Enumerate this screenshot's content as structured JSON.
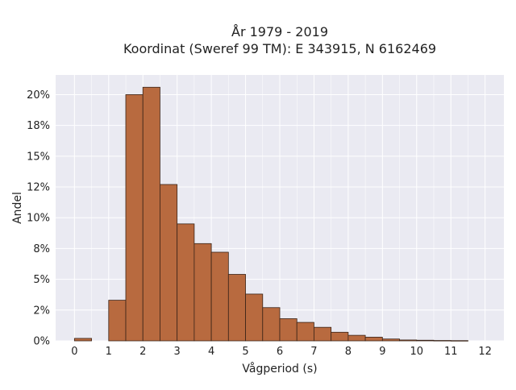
{
  "chart_data": {
    "type": "bar",
    "title_line1": "År 1979 - 2019",
    "title_line2": "Koordinat (Sweref 99 TM): E 343915, N 6162469",
    "xlabel": "Vågperiod (s)",
    "ylabel": "Andel",
    "bin_width": 0.5,
    "bins": [
      {
        "x0": 0.0,
        "value": 0.2
      },
      {
        "x0": 1.0,
        "value": 3.3
      },
      {
        "x0": 1.5,
        "value": 20.0
      },
      {
        "x0": 2.0,
        "value": 20.6
      },
      {
        "x0": 2.5,
        "value": 12.7
      },
      {
        "x0": 3.0,
        "value": 9.5
      },
      {
        "x0": 3.5,
        "value": 7.9
      },
      {
        "x0": 4.0,
        "value": 7.2
      },
      {
        "x0": 4.5,
        "value": 5.4
      },
      {
        "x0": 5.0,
        "value": 3.8
      },
      {
        "x0": 5.5,
        "value": 2.7
      },
      {
        "x0": 6.0,
        "value": 1.8
      },
      {
        "x0": 6.5,
        "value": 1.5
      },
      {
        "x0": 7.0,
        "value": 1.1
      },
      {
        "x0": 7.5,
        "value": 0.7
      },
      {
        "x0": 8.0,
        "value": 0.45
      },
      {
        "x0": 8.5,
        "value": 0.3
      },
      {
        "x0": 9.0,
        "value": 0.15
      },
      {
        "x0": 9.5,
        "value": 0.07
      },
      {
        "x0": 10.0,
        "value": 0.05
      },
      {
        "x0": 10.5,
        "value": 0.03
      },
      {
        "x0": 11.0,
        "value": 0.02
      }
    ],
    "x_ticks": [
      0,
      1,
      2,
      3,
      4,
      5,
      6,
      7,
      8,
      9,
      10,
      11,
      12
    ],
    "x_tick_labels": [
      "0",
      "1",
      "2",
      "3",
      "4",
      "5",
      "6",
      "7",
      "8",
      "9",
      "10",
      "11",
      "12"
    ],
    "y_ticks": [
      0,
      2.5,
      5,
      7.5,
      10,
      12.5,
      15,
      17.5,
      20
    ],
    "y_tick_labels": [
      "0%",
      "2%",
      "5%",
      "8%",
      "10%",
      "12%",
      "15%",
      "18%",
      "20%"
    ],
    "xlim": [
      -0.55,
      12.55
    ],
    "ylim": [
      0,
      21.6
    ],
    "grid": true,
    "colors": {
      "bar_fill": "#b86a3f",
      "bar_stroke": "#3a2418",
      "plot_bg": "#eaeaf2",
      "grid": "#ffffff"
    }
  }
}
